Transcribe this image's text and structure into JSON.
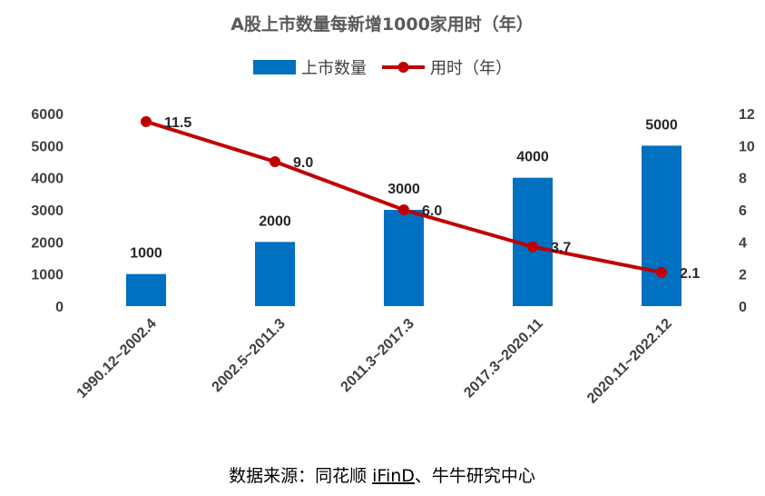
{
  "chart_data": {
    "type": "bar",
    "title": "A股上市数量每新增1000家用时（年）",
    "categories": [
      "1990.12~2002.4",
      "2002.5~2011.3",
      "2011.3~2017.3",
      "2017.3~2020.11",
      "2020.11~2022.12"
    ],
    "series": [
      {
        "name": "上市数量",
        "type": "bar",
        "axis": "left",
        "color": "#0070C0",
        "values": [
          1000,
          2000,
          3000,
          4000,
          5000
        ],
        "labels": [
          "1000",
          "2000",
          "3000",
          "4000",
          "5000"
        ]
      },
      {
        "name": "用时（年）",
        "type": "line",
        "axis": "right",
        "color": "#C00000",
        "values": [
          11.5,
          9.0,
          6.0,
          3.7,
          2.1
        ],
        "labels": [
          "11.5",
          "9.0",
          "6.0",
          "3.7",
          "2.1"
        ]
      }
    ],
    "ylim": [
      0,
      6000
    ],
    "yticks": [
      "0",
      "1000",
      "2000",
      "3000",
      "4000",
      "5000",
      "6000"
    ],
    "y2lim": [
      0,
      12
    ],
    "y2ticks": [
      "0",
      "2",
      "4",
      "6",
      "8",
      "10",
      "12"
    ],
    "grid": false,
    "legend_position": "top"
  },
  "source": {
    "prefix": "数据来源：同花顺 ",
    "brand": "iFinD",
    "suffix": "、牛牛研究中心"
  }
}
